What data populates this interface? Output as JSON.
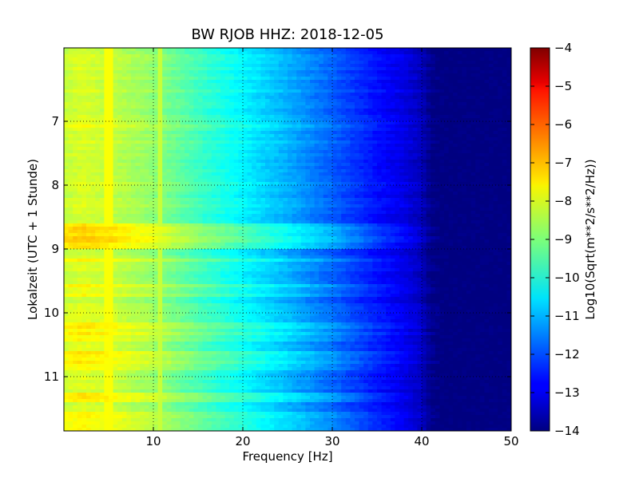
{
  "chart_data": {
    "type": "heatmap",
    "title": "BW RJOB HHZ: 2018-12-05",
    "xlabel": "Frequency [Hz]",
    "ylabel": "Lokalzeit (UTC + 1 Stunde)",
    "xlim": [
      0,
      50
    ],
    "ylim": [
      5.85,
      11.85
    ],
    "y_inverted": true,
    "x_ticks": [
      10,
      20,
      30,
      40,
      50
    ],
    "x_tick_labels": [
      "10",
      "20",
      "30",
      "40",
      "50"
    ],
    "y_ticks": [
      7,
      8,
      9,
      10,
      11
    ],
    "y_tick_labels": [
      "7",
      "8",
      "9",
      "10",
      "11"
    ],
    "grid": true,
    "colormap": "jet",
    "colorbar": {
      "label": "Log10(Sqrt(m**2/s**2/Hz))",
      "range": [
        -14,
        -4
      ],
      "ticks": [
        -4,
        -5,
        -6,
        -7,
        -8,
        -9,
        -10,
        -11,
        -12,
        -13,
        -14
      ],
      "tick_labels": [
        "−4",
        "−5",
        "−6",
        "−7",
        "−8",
        "−9",
        "−10",
        "−11",
        "−12",
        "−13",
        "−14"
      ]
    },
    "spectrum_profile": {
      "frequency_hz": [
        0,
        2,
        5,
        10,
        15,
        20,
        25,
        30,
        35,
        38,
        40,
        41,
        42,
        50
      ],
      "log10_amplitude": [
        -8.3,
        -8.1,
        -8.3,
        -8.8,
        -9.6,
        -10.3,
        -11.0,
        -11.8,
        -12.6,
        -13.0,
        -13.4,
        -13.9,
        -14.0,
        -14.0
      ]
    },
    "spectral_lines": [
      {
        "frequency_hz": 5.0,
        "log10_amplitude": -7.8
      },
      {
        "frequency_hz": 10.9,
        "log10_amplitude": -8.3
      }
    ],
    "loud_periods": [
      {
        "start_hour": 6.13,
        "end_hour": 6.16,
        "delta": 0.6
      },
      {
        "start_hour": 7.07,
        "end_hour": 7.12,
        "delta": 0.5
      },
      {
        "start_hour": 8.48,
        "end_hour": 8.52,
        "delta": 0.6
      },
      {
        "start_hour": 8.62,
        "end_hour": 8.98,
        "delta": 0.8
      },
      {
        "start_hour": 9.15,
        "end_hour": 9.19,
        "delta": 0.6
      },
      {
        "start_hour": 9.55,
        "end_hour": 9.6,
        "delta": 0.6
      },
      {
        "start_hour": 9.72,
        "end_hour": 9.76,
        "delta": 0.5
      },
      {
        "start_hour": 10.15,
        "end_hour": 10.45,
        "delta": 0.5
      },
      {
        "start_hour": 10.6,
        "end_hour": 10.9,
        "delta": 0.5
      },
      {
        "start_hour": 11.25,
        "end_hour": 11.4,
        "delta": 0.7
      },
      {
        "start_hour": 11.55,
        "end_hour": 11.85,
        "delta": 0.4
      }
    ]
  }
}
